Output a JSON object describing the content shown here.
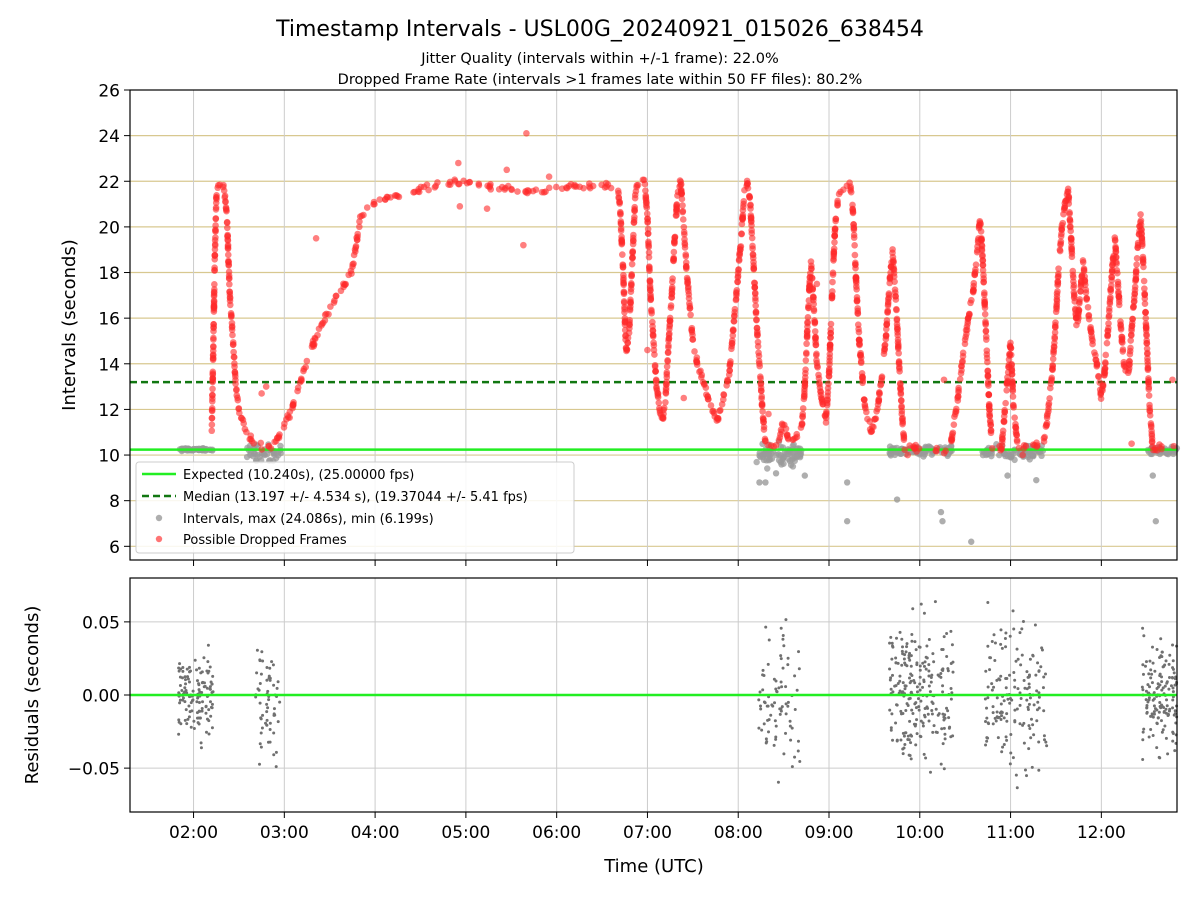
{
  "chart_data": {
    "title": "Timestamp Intervals - USL00G_20240921_015026_638454",
    "subtitle_lines": [
      "Jitter Quality (intervals within +/-1 frame): 22.0%",
      "Dropped Frame Rate (intervals >1 frames late within 50 FF files): 80.2%"
    ],
    "xlabel": "Time (UTC)",
    "x_ticks": [
      "02:00",
      "03:00",
      "04:00",
      "05:00",
      "06:00",
      "07:00",
      "08:00",
      "09:00",
      "10:00",
      "11:00",
      "12:00"
    ],
    "x_range": [
      "01:18",
      "12:50"
    ],
    "colors": {
      "expected": "#22ee22",
      "median": "#117711",
      "interval": "#9a9a9a",
      "dropped": "#ff2a2a",
      "residual": "#707070",
      "hgrid_top": "#d8c890",
      "grid": "#cccccc"
    },
    "panels": [
      {
        "type": "scatter",
        "ylabel": "Intervals (seconds)",
        "ylim": [
          5.4,
          26
        ],
        "y_ticks": [
          6,
          8,
          10,
          12,
          14,
          16,
          18,
          20,
          22,
          24,
          26
        ],
        "grid": true,
        "expected_line": 10.24,
        "median_line": 13.197,
        "legend_position": "lower-left",
        "legend": [
          "Expected (10.240s), (25.00000 fps)",
          "Median (13.197 +/- 4.534 s), (19.37044 +/- 5.41 fps)",
          "Intervals, max (24.086s), min (6.199s)",
          "Possible Dropped Frames"
        ],
        "gray_segments": [
          [
            "01:50",
            "02:13",
            10.24,
            0.04,
            60
          ],
          [
            "02:35",
            "02:58",
            10.1,
            0.25,
            40
          ],
          [
            "08:12",
            "08:42",
            10.0,
            0.35,
            70
          ],
          [
            "09:40",
            "10:22",
            10.2,
            0.15,
            110
          ],
          [
            "10:40",
            "11:22",
            10.15,
            0.2,
            80
          ],
          [
            "12:30",
            "12:50",
            10.2,
            0.1,
            50
          ]
        ],
        "gray_outliers": [
          [
            "08:14",
            8.8
          ],
          [
            "08:18",
            8.8
          ],
          [
            "08:25",
            9.2
          ],
          [
            "08:44",
            9.1
          ],
          [
            "09:12",
            7.1
          ],
          [
            "09:12",
            8.8
          ],
          [
            "09:45",
            8.05
          ],
          [
            "10:14",
            7.5
          ],
          [
            "10:15",
            7.1
          ],
          [
            "10:34",
            6.2
          ],
          [
            "10:58",
            9.1
          ],
          [
            "11:17",
            8.9
          ],
          [
            "12:34",
            9.1
          ],
          [
            "12:36",
            7.1
          ]
        ],
        "dropped_polyline": [
          [
            "02:12",
            11.0
          ],
          [
            "02:13",
            14.5
          ],
          [
            "02:14",
            18.5
          ],
          [
            "02:15",
            21.2
          ],
          [
            "02:16",
            21.8
          ],
          [
            "02:18",
            21.9
          ],
          [
            "02:20",
            21.8
          ],
          [
            "02:22",
            20.5
          ],
          [
            "02:24",
            17.0
          ],
          [
            "02:26",
            15.0
          ],
          [
            "02:28",
            13.0
          ],
          [
            "02:30",
            12.0
          ],
          [
            "02:34",
            11.2
          ],
          [
            "02:38",
            10.7
          ],
          [
            "02:42",
            10.5
          ],
          [
            "02:46",
            10.3
          ],
          [
            "02:50",
            10.3
          ],
          [
            "02:55",
            10.6
          ],
          [
            "03:00",
            11.3
          ],
          [
            "03:05",
            12.0
          ],
          [
            "03:10",
            13.0
          ],
          [
            "03:15",
            14.1
          ],
          [
            "03:20",
            15.0
          ],
          [
            "03:25",
            15.8
          ],
          [
            "03:30",
            16.4
          ],
          [
            "03:35",
            17.0
          ],
          [
            "03:40",
            17.5
          ],
          [
            "03:45",
            18.1
          ],
          [
            "03:47",
            19.0
          ],
          [
            "03:50",
            20.3
          ],
          [
            "03:55",
            20.8
          ],
          [
            "04:00",
            21.1
          ],
          [
            "04:10",
            21.3
          ],
          [
            "04:20",
            21.5
          ],
          [
            "04:30",
            21.6
          ],
          [
            "04:40",
            21.8
          ],
          [
            "04:50",
            21.9
          ],
          [
            "05:00",
            21.9
          ],
          [
            "05:10",
            21.8
          ],
          [
            "05:20",
            21.7
          ],
          [
            "05:30",
            21.7
          ],
          [
            "05:40",
            21.6
          ],
          [
            "05:50",
            21.6
          ],
          [
            "06:00",
            21.7
          ],
          [
            "06:10",
            21.7
          ],
          [
            "06:20",
            21.8
          ],
          [
            "06:30",
            21.8
          ],
          [
            "06:40",
            21.8
          ],
          [
            "06:42",
            20.8
          ],
          [
            "06:44",
            18.0
          ],
          [
            "06:45",
            16.0
          ],
          [
            "06:46",
            14.5
          ],
          [
            "06:48",
            15.5
          ],
          [
            "06:50",
            18.5
          ],
          [
            "06:52",
            21.5
          ],
          [
            "06:54",
            22.0
          ],
          [
            "06:58",
            22.0
          ],
          [
            "07:00",
            20.5
          ],
          [
            "07:02",
            17.0
          ],
          [
            "07:04",
            15.0
          ],
          [
            "07:06",
            13.0
          ],
          [
            "07:08",
            12.0
          ],
          [
            "07:10",
            11.5
          ],
          [
            "07:12",
            12.5
          ],
          [
            "07:14",
            15.0
          ],
          [
            "07:16",
            17.0
          ],
          [
            "07:18",
            19.5
          ],
          [
            "07:20",
            21.5
          ],
          [
            "07:22",
            22.0
          ],
          [
            "07:24",
            20.0
          ],
          [
            "07:26",
            18.0
          ],
          [
            "07:28",
            16.5
          ],
          [
            "07:30",
            15.0
          ],
          [
            "07:33",
            14.0
          ],
          [
            "07:36",
            13.5
          ],
          [
            "07:40",
            12.5
          ],
          [
            "07:43",
            12.0
          ],
          [
            "07:46",
            11.5
          ],
          [
            "07:50",
            12.5
          ],
          [
            "07:54",
            13.5
          ],
          [
            "07:56",
            15.0
          ],
          [
            "07:58",
            16.5
          ],
          [
            "08:00",
            18.0
          ],
          [
            "08:02",
            19.5
          ],
          [
            "08:04",
            21.5
          ],
          [
            "08:06",
            22.0
          ],
          [
            "08:08",
            21.0
          ],
          [
            "08:10",
            18.5
          ],
          [
            "08:12",
            16.0
          ],
          [
            "08:14",
            14.0
          ],
          [
            "08:16",
            12.0
          ],
          [
            "08:18",
            10.5
          ],
          [
            "08:22",
            10.3
          ],
          [
            "08:26",
            10.5
          ],
          [
            "08:30",
            11.5
          ],
          [
            "08:34",
            10.5
          ],
          [
            "08:38",
            10.8
          ],
          [
            "08:42",
            11.2
          ],
          [
            "08:44",
            13.0
          ],
          [
            "08:46",
            16.0
          ],
          [
            "08:48",
            18.5
          ],
          [
            "08:50",
            16.5
          ],
          [
            "08:52",
            14.0
          ],
          [
            "08:55",
            12.5
          ],
          [
            "08:58",
            11.5
          ],
          [
            "09:00",
            13.5
          ],
          [
            "09:02",
            17.0
          ],
          [
            "09:04",
            20.0
          ],
          [
            "09:06",
            21.3
          ],
          [
            "09:10",
            21.7
          ],
          [
            "09:14",
            21.9
          ],
          [
            "09:16",
            20.5
          ],
          [
            "09:18",
            17.5
          ],
          [
            "09:20",
            15.0
          ],
          [
            "09:22",
            13.5
          ],
          [
            "09:24",
            12.0
          ],
          [
            "09:28",
            11.0
          ],
          [
            "09:32",
            12.0
          ],
          [
            "09:36",
            14.0
          ],
          [
            "09:38",
            15.5
          ],
          [
            "09:40",
            17.5
          ],
          [
            "09:42",
            19.0
          ],
          [
            "09:44",
            17.0
          ],
          [
            "09:46",
            14.5
          ],
          [
            "09:48",
            12.0
          ],
          [
            "09:50",
            10.3
          ],
          [
            "10:10",
            10.3
          ],
          [
            "10:20",
            10.3
          ],
          [
            "10:24",
            12.0
          ],
          [
            "10:28",
            14.0
          ],
          [
            "10:32",
            16.0
          ],
          [
            "10:35",
            17.0
          ],
          [
            "10:38",
            19.0
          ],
          [
            "10:40",
            20.5
          ],
          [
            "10:42",
            18.0
          ],
          [
            "10:44",
            15.0
          ],
          [
            "10:46",
            12.0
          ],
          [
            "10:48",
            10.3
          ],
          [
            "10:54",
            10.3
          ],
          [
            "10:57",
            12.5
          ],
          [
            "11:00",
            15.0
          ],
          [
            "11:02",
            12.0
          ],
          [
            "11:05",
            10.3
          ],
          [
            "11:15",
            10.3
          ],
          [
            "11:22",
            10.5
          ],
          [
            "11:25",
            12.0
          ],
          [
            "11:28",
            14.0
          ],
          [
            "11:30",
            16.0
          ],
          [
            "11:32",
            18.5
          ],
          [
            "11:34",
            20.0
          ],
          [
            "11:36",
            21.0
          ],
          [
            "11:38",
            21.7
          ],
          [
            "11:40",
            19.5
          ],
          [
            "11:42",
            17.0
          ],
          [
            "11:44",
            15.5
          ],
          [
            "11:46",
            17.0
          ],
          [
            "11:48",
            18.5
          ],
          [
            "11:50",
            17.0
          ],
          [
            "11:52",
            16.0
          ],
          [
            "11:54",
            15.0
          ],
          [
            "11:57",
            14.0
          ],
          [
            "12:00",
            12.5
          ],
          [
            "12:02",
            13.5
          ],
          [
            "12:05",
            16.0
          ],
          [
            "12:07",
            18.0
          ],
          [
            "12:09",
            19.5
          ],
          [
            "12:11",
            17.5
          ],
          [
            "12:13",
            15.5
          ],
          [
            "12:15",
            14.0
          ],
          [
            "12:18",
            13.5
          ],
          [
            "12:20",
            15.5
          ],
          [
            "12:22",
            17.0
          ],
          [
            "12:24",
            19.0
          ],
          [
            "12:26",
            20.5
          ],
          [
            "12:28",
            18.0
          ],
          [
            "12:30",
            15.0
          ],
          [
            "12:32",
            12.0
          ],
          [
            "12:34",
            10.3
          ],
          [
            "12:50",
            10.3
          ]
        ],
        "dropped_outliers": [
          [
            "05:40",
            24.1
          ],
          [
            "05:38",
            19.2
          ],
          [
            "04:55",
            22.8
          ],
          [
            "05:27",
            22.5
          ],
          [
            "05:55",
            22.2
          ],
          [
            "05:14",
            20.8
          ],
          [
            "04:56",
            20.9
          ],
          [
            "03:21",
            19.5
          ],
          [
            "02:45",
            12.7
          ],
          [
            "02:48",
            13.0
          ],
          [
            "07:00",
            14.6
          ],
          [
            "07:24",
            12.5
          ],
          [
            "10:16",
            13.3
          ],
          [
            "10:58",
            13.2
          ],
          [
            "12:20",
            10.5
          ],
          [
            "12:47",
            13.3
          ],
          [
            "09:52",
            10.0
          ],
          [
            "11:08",
            10.0
          ],
          [
            "08:52",
            17.5
          ],
          [
            "08:20",
            11.8
          ]
        ]
      },
      {
        "type": "scatter",
        "ylabel": "Residuals (seconds)",
        "ylim": [
          -0.08,
          0.08
        ],
        "y_ticks": [
          -0.05,
          0.0,
          0.05
        ],
        "y_tick_labels": [
          "−0.05",
          "0.00",
          "0.05"
        ],
        "grid": true,
        "zero_line": 0.0,
        "residual_segments": [
          [
            "01:50",
            "02:13",
            0.0,
            0.02,
            130
          ],
          [
            "02:41",
            "02:57",
            -0.01,
            0.03,
            60
          ],
          [
            "08:13",
            "08:43",
            0.0,
            0.035,
            80
          ],
          [
            "09:40",
            "10:22",
            0.0,
            0.035,
            230
          ],
          [
            "10:43",
            "11:24",
            0.0,
            0.035,
            160
          ],
          [
            "12:27",
            "12:50",
            0.0,
            0.025,
            150
          ]
        ]
      }
    ]
  }
}
